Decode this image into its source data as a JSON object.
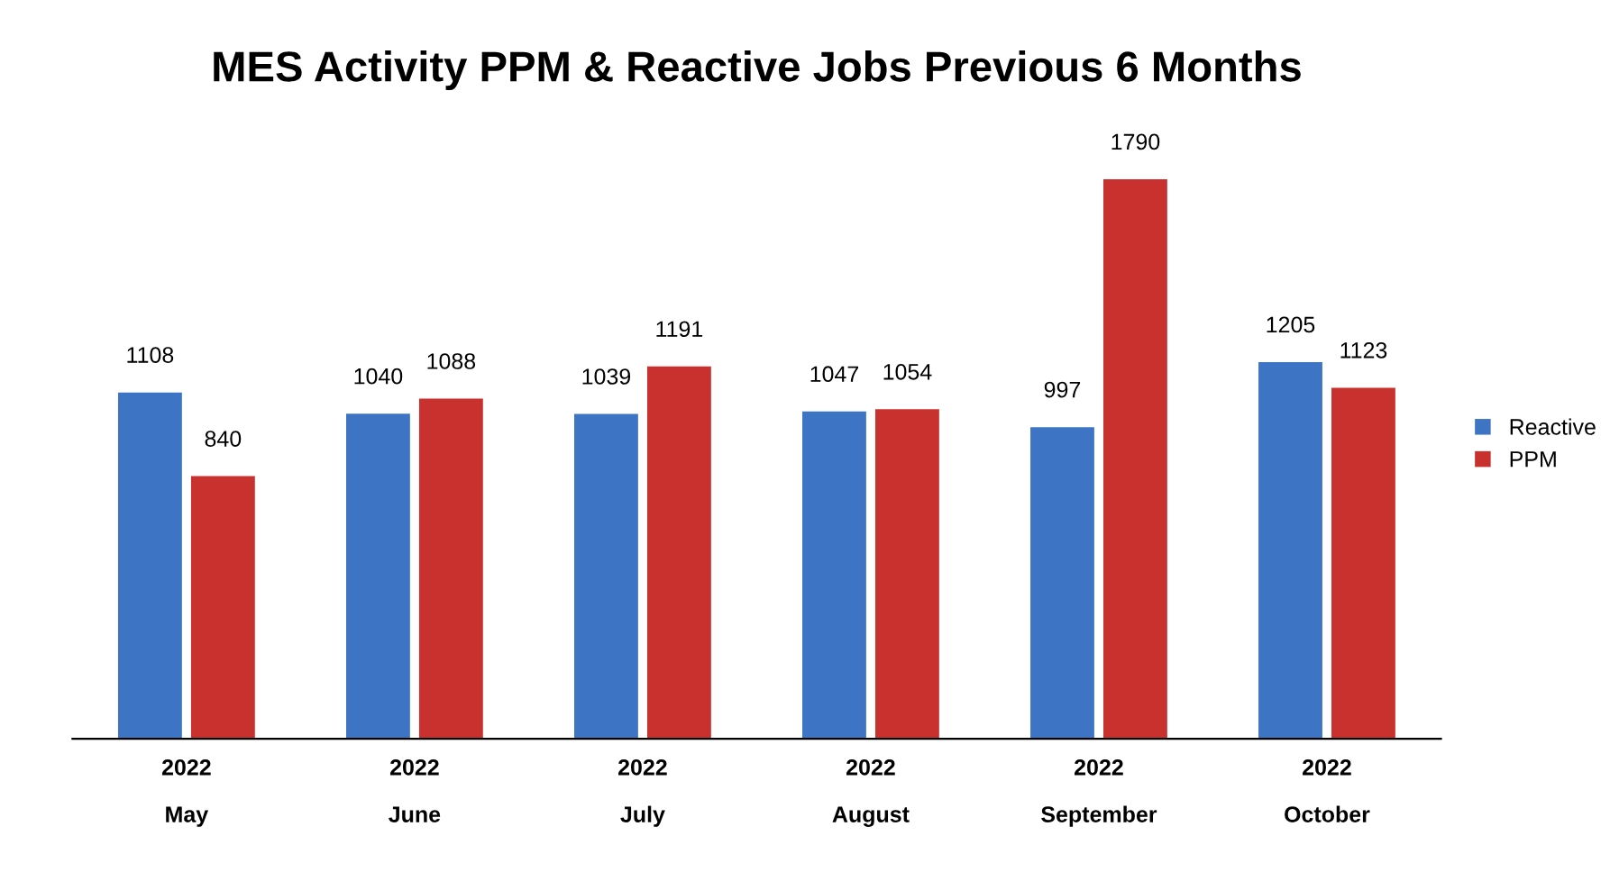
{
  "chart_data": {
    "type": "bar",
    "title": "MES Activity PPM & Reactive Jobs Previous 6 Months",
    "categories": [
      "2022\nMay",
      "2022\nJune",
      "2022\nJuly",
      "2022\nAugust",
      "2022\nSeptember",
      "2022\nOctober"
    ],
    "series": [
      {
        "name": "Reactive",
        "color": "#3d74c4",
        "values": [
          1108,
          1040,
          1039,
          1047,
          997,
          1205
        ]
      },
      {
        "name": "PPM",
        "color": "#c8312e",
        "values": [
          840,
          1088,
          1191,
          1054,
          1790,
          1123
        ]
      }
    ],
    "data_labels": true,
    "legend": "right",
    "grid": false
  }
}
